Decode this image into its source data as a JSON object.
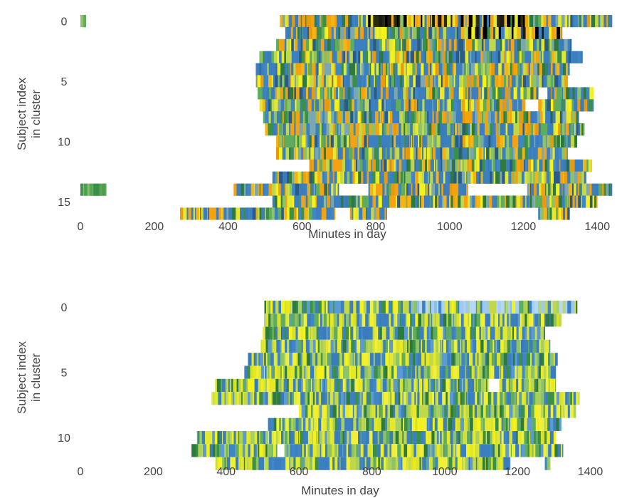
{
  "chart_data": [
    {
      "type": "heatmap",
      "title": "",
      "xlabel": "Minutes in day",
      "ylabel": "Subject index\nin cluster",
      "xlim": [
        0,
        1440
      ],
      "ylim": [
        -0.5,
        15.5
      ],
      "xticks": [
        0,
        200,
        400,
        600,
        800,
        1000,
        1200,
        1400
      ],
      "yticks": [
        0,
        5,
        10,
        15
      ],
      "grid": false,
      "legend": "none",
      "subjects": [
        {
          "subject": 0,
          "start": 540,
          "end": 1440,
          "dark_band": [
            745,
            1205
          ],
          "extra": [
            [
              0,
              15
            ]
          ]
        },
        {
          "subject": 1,
          "start": 555,
          "end": 1305,
          "dark_band": [
            1045,
            1295
          ]
        },
        {
          "subject": 2,
          "start": 530,
          "end": 1330
        },
        {
          "subject": 3,
          "start": 485,
          "end": 1360
        },
        {
          "subject": 4,
          "start": 475,
          "end": 1325
        },
        {
          "subject": 5,
          "start": 475,
          "end": 1320
        },
        {
          "subject": 6,
          "start": 480,
          "end": 1390,
          "gaps": [
            [
              1240,
              1265
            ]
          ]
        },
        {
          "subject": 7,
          "start": 485,
          "end": 1390,
          "gaps": [
            [
              1205,
              1240
            ]
          ]
        },
        {
          "subject": 8,
          "start": 495,
          "end": 1350
        },
        {
          "subject": 9,
          "start": 500,
          "end": 1365
        },
        {
          "subject": 10,
          "start": 530,
          "end": 1345
        },
        {
          "subject": 11,
          "start": 530,
          "end": 1320
        },
        {
          "subject": 12,
          "start": 620,
          "end": 1385
        },
        {
          "subject": 13,
          "start": 520,
          "end": 1370
        },
        {
          "subject": 14,
          "start": 415,
          "end": 1440,
          "gaps": [
            [
              700,
              780
            ],
            [
              1050,
              1210
            ]
          ],
          "extra": [
            [
              0,
              70
            ]
          ]
        },
        {
          "subject": 15,
          "start": 520,
          "end": 1400
        }
      ],
      "extra_rows": [
        {
          "row": 16,
          "segments": [
            [
              270,
              690
            ],
            [
              730,
              830
            ],
            [
              1240,
              1325
            ]
          ]
        }
      ]
    },
    {
      "type": "heatmap",
      "title": "",
      "xlabel": "Minutes in day",
      "ylabel": "Subject index\nin cluster",
      "xlim": [
        0,
        1440
      ],
      "ylim": [
        -0.5,
        12.5
      ],
      "xticks": [
        0,
        200,
        400,
        600,
        800,
        1000,
        1200,
        1400
      ],
      "yticks": [
        0,
        5,
        10
      ],
      "grid": false,
      "legend": "none",
      "subjects": [
        {
          "subject": 0,
          "start": 505,
          "end": 1365,
          "light_band": [
            870,
            1360
          ]
        },
        {
          "subject": 1,
          "start": 505,
          "end": 1320
        },
        {
          "subject": 2,
          "start": 500,
          "end": 1275
        },
        {
          "subject": 3,
          "start": 495,
          "end": 1290
        },
        {
          "subject": 4,
          "start": 460,
          "end": 1310
        },
        {
          "subject": 5,
          "start": 450,
          "end": 1305
        },
        {
          "subject": 6,
          "start": 370,
          "end": 1305,
          "gaps": [
            [
              1120,
              1150
            ]
          ]
        },
        {
          "subject": 7,
          "start": 360,
          "end": 1370
        },
        {
          "subject": 8,
          "start": 600,
          "end": 1360
        },
        {
          "subject": 9,
          "start": 515,
          "end": 1320
        },
        {
          "subject": 10,
          "start": 320,
          "end": 1305
        },
        {
          "subject": 11,
          "start": 305,
          "end": 1325,
          "gaps": [
            [
              540,
              560
            ]
          ]
        },
        {
          "subject": 12,
          "start": 370,
          "end": 1180,
          "extra": [
            [
              1275,
              1290
            ]
          ]
        }
      ]
    }
  ]
}
